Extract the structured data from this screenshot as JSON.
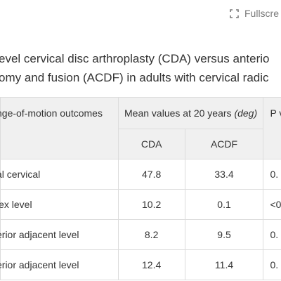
{
  "toolbar": {
    "fullscreen_label": "Fullscre",
    "fullscreen_icon": "expand-corners-icon"
  },
  "caption": {
    "line1": "evel cervical disc arthroplasty (CDA) versus anterio",
    "line2": "omy and fusion (ACDF) in adults with cervical radic"
  },
  "table": {
    "header": {
      "label_col": "nge-of-motion outcomes",
      "mean_col_prefix": "Mean values at 20 years ",
      "mean_col_unit": "(deg)",
      "p_col": "P v"
    },
    "subheaders": {
      "cda": "CDA",
      "acdf": "ACDF"
    },
    "rows": [
      {
        "label": "al cervical",
        "cda": "47.8",
        "acdf": "33.4",
        "p": "0."
      },
      {
        "label": "lex level",
        "cda": "10.2",
        "acdf": "0.1",
        "p": "<0"
      },
      {
        "label": "erior adjacent level",
        "cda": "8.2",
        "acdf": "9.5",
        "p": "0."
      },
      {
        "label": "erior adjacent level",
        "cda": "12.4",
        "acdf": "11.4",
        "p": "0."
      }
    ]
  }
}
